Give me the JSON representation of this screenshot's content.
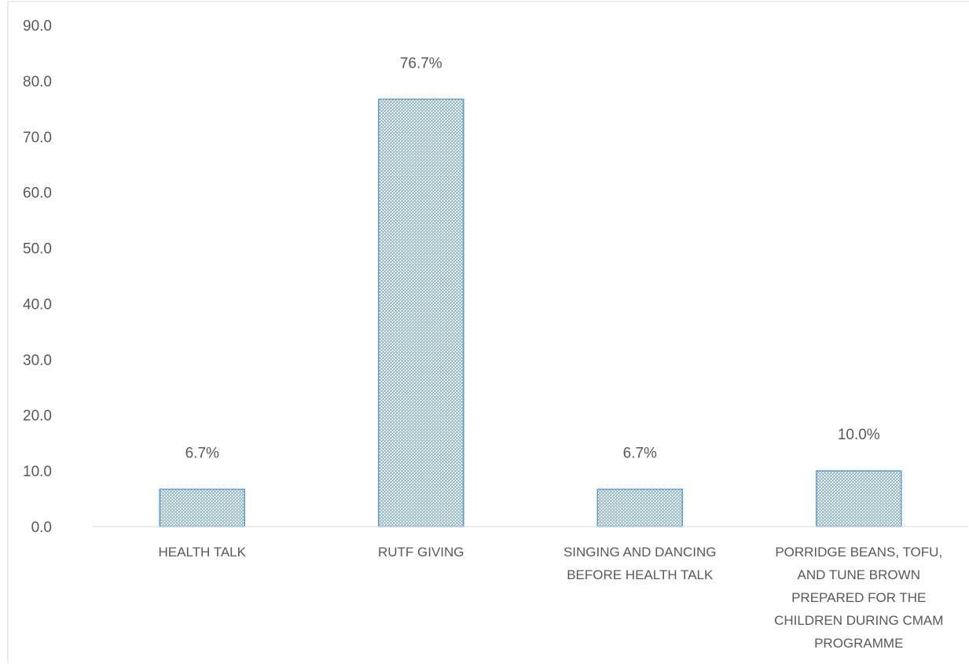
{
  "chart_data": {
    "type": "bar",
    "categories": [
      [
        "HEALTH TALK"
      ],
      [
        "RUTF GIVING"
      ],
      [
        "SINGING AND DANCING",
        "BEFORE HEALTH TALK"
      ],
      [
        "PORRIDGE BEANS, TOFU,",
        "AND TUNE BROWN",
        "PREPARED FOR THE",
        "CHILDREN DURING CMAM",
        "PROGRAMME"
      ]
    ],
    "values": [
      6.7,
      76.7,
      6.7,
      10.0
    ],
    "data_labels": [
      "6.7%",
      "76.7%",
      "6.7%",
      "10.0%"
    ],
    "y_ticks": [
      "0.0",
      "10.0",
      "20.0",
      "30.0",
      "40.0",
      "50.0",
      "60.0",
      "70.0",
      "80.0",
      "90.0"
    ],
    "ylim": [
      0,
      90
    ],
    "grid": false,
    "legend": "none",
    "colors": {
      "bar_stroke": "#5B9BD5",
      "bar_pattern": "#5B9BD5",
      "text": "#595959",
      "frame": "#D9D9D9"
    }
  }
}
